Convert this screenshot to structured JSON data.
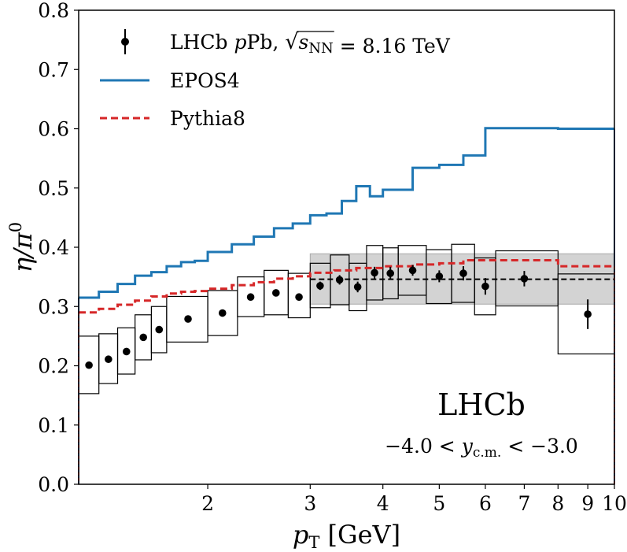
{
  "chart_data": {
    "type": "scatter",
    "xscale": "log",
    "xlim": [
      1.2,
      10
    ],
    "ylim": [
      0.0,
      0.8
    ],
    "grid": false,
    "xlabel_main": "p",
    "xlabel_sub": "T",
    "xlabel_unit": " [GeV]",
    "ylabel_main": "η/π",
    "ylabel_sup": "0",
    "x_ticks": [
      {
        "value": 2,
        "label": "2"
      },
      {
        "value": 3,
        "label": "3"
      },
      {
        "value": 4,
        "label": "4"
      },
      {
        "value": 5,
        "label": "5"
      },
      {
        "value": 6,
        "label": "6"
      },
      {
        "value": 7,
        "label": "7"
      },
      {
        "value": 8,
        "label": "8"
      },
      {
        "value": 9,
        "label": "9"
      },
      {
        "value": 10,
        "label": "10"
      }
    ],
    "y_ticks": [
      {
        "value": 0.0,
        "label": "0.0"
      },
      {
        "value": 0.1,
        "label": "0.1"
      },
      {
        "value": 0.2,
        "label": "0.2"
      },
      {
        "value": 0.3,
        "label": "0.3"
      },
      {
        "value": 0.4,
        "label": "0.4"
      },
      {
        "value": 0.5,
        "label": "0.5"
      },
      {
        "value": 0.6,
        "label": "0.6"
      },
      {
        "value": 0.7,
        "label": "0.7"
      },
      {
        "value": 0.8,
        "label": "0.8"
      }
    ],
    "legend": {
      "position": "top-left",
      "entries": [
        {
          "key": "data",
          "parts": [
            {
              "t": "LHCb "
            },
            {
              "t": "p",
              "italic": true
            },
            {
              "t": "Pb, "
            },
            {
              "t": "√",
              "root": true
            },
            {
              "t": "s",
              "italic": true,
              "overline": true
            },
            {
              "t": "NN",
              "sub": true,
              "overline": true
            },
            {
              "t": " = 8.16 TeV"
            }
          ]
        },
        {
          "key": "epos",
          "label": "EPOS4"
        },
        {
          "key": "pythia",
          "label": "Pythia8"
        }
      ]
    },
    "annotations": {
      "experiment": "LHCb",
      "rapidity": {
        "lo": "−4.0 < ",
        "var": "y",
        "sub": "c.m.",
        "hi": " < −3.0"
      }
    },
    "data_series": {
      "name": "LHCb pPb, sqrt(s_NN) = 8.16 TeV",
      "color": "#000000",
      "points": [
        {
          "xlo": 1.2,
          "xhi": 1.3,
          "x": 1.25,
          "y": 0.201,
          "stat": 0.004,
          "sys_lo": 0.153,
          "sys_hi": 0.25
        },
        {
          "xlo": 1.3,
          "xhi": 1.4,
          "x": 1.35,
          "y": 0.211,
          "stat": 0.004,
          "sys_lo": 0.17,
          "sys_hi": 0.254
        },
        {
          "xlo": 1.4,
          "xhi": 1.5,
          "x": 1.45,
          "y": 0.224,
          "stat": 0.004,
          "sys_lo": 0.186,
          "sys_hi": 0.264
        },
        {
          "xlo": 1.5,
          "xhi": 1.6,
          "x": 1.55,
          "y": 0.248,
          "stat": 0.005,
          "sys_lo": 0.21,
          "sys_hi": 0.286
        },
        {
          "xlo": 1.6,
          "xhi": 1.7,
          "x": 1.65,
          "y": 0.261,
          "stat": 0.005,
          "sys_lo": 0.222,
          "sys_hi": 0.3
        },
        {
          "xlo": 1.7,
          "xhi": 2.0,
          "x": 1.85,
          "y": 0.279,
          "stat": 0.004,
          "sys_lo": 0.24,
          "sys_hi": 0.317
        },
        {
          "xlo": 2.0,
          "xhi": 2.25,
          "x": 2.12,
          "y": 0.289,
          "stat": 0.004,
          "sys_lo": 0.251,
          "sys_hi": 0.327
        },
        {
          "xlo": 2.25,
          "xhi": 2.5,
          "x": 2.37,
          "y": 0.316,
          "stat": 0.005,
          "sys_lo": 0.283,
          "sys_hi": 0.35
        },
        {
          "xlo": 2.5,
          "xhi": 2.75,
          "x": 2.62,
          "y": 0.323,
          "stat": 0.006,
          "sys_lo": 0.286,
          "sys_hi": 0.361
        },
        {
          "xlo": 2.75,
          "xhi": 3.0,
          "x": 2.87,
          "y": 0.316,
          "stat": 0.006,
          "sys_lo": 0.281,
          "sys_hi": 0.356
        },
        {
          "xlo": 3.0,
          "xhi": 3.25,
          "x": 3.12,
          "y": 0.335,
          "stat": 0.007,
          "sys_lo": 0.298,
          "sys_hi": 0.373
        },
        {
          "xlo": 3.25,
          "xhi": 3.5,
          "x": 3.37,
          "y": 0.345,
          "stat": 0.008,
          "sys_lo": 0.303,
          "sys_hi": 0.387
        },
        {
          "xlo": 3.5,
          "xhi": 3.75,
          "x": 3.62,
          "y": 0.333,
          "stat": 0.009,
          "sys_lo": 0.293,
          "sys_hi": 0.373
        },
        {
          "xlo": 3.75,
          "xhi": 4.0,
          "x": 3.87,
          "y": 0.357,
          "stat": 0.01,
          "sys_lo": 0.311,
          "sys_hi": 0.403
        },
        {
          "xlo": 4.0,
          "xhi": 4.25,
          "x": 4.12,
          "y": 0.356,
          "stat": 0.011,
          "sys_lo": 0.313,
          "sys_hi": 0.399
        },
        {
          "xlo": 4.25,
          "xhi": 4.75,
          "x": 4.5,
          "y": 0.361,
          "stat": 0.009,
          "sys_lo": 0.319,
          "sys_hi": 0.403
        },
        {
          "xlo": 4.75,
          "xhi": 5.25,
          "x": 5.0,
          "y": 0.351,
          "stat": 0.01,
          "sys_lo": 0.305,
          "sys_hi": 0.396
        },
        {
          "xlo": 5.25,
          "xhi": 5.75,
          "x": 5.5,
          "y": 0.356,
          "stat": 0.012,
          "sys_lo": 0.307,
          "sys_hi": 0.405
        },
        {
          "xlo": 5.75,
          "xhi": 6.25,
          "x": 6.0,
          "y": 0.334,
          "stat": 0.014,
          "sys_lo": 0.286,
          "sys_hi": 0.382
        },
        {
          "xlo": 6.25,
          "xhi": 8.0,
          "x": 7.0,
          "y": 0.347,
          "stat": 0.013,
          "sys_lo": 0.301,
          "sys_hi": 0.394
        },
        {
          "xlo": 8.0,
          "xhi": 10.0,
          "x": 9.0,
          "y": 0.287,
          "stat": 0.025,
          "sys_lo": 0.22,
          "sys_hi": 0.355
        }
      ]
    },
    "fit": {
      "name": "constant fit (high p_T)",
      "xlo": 3.0,
      "xhi": 10.0,
      "value": 0.346,
      "band_lo": 0.304,
      "band_hi": 0.389,
      "line_color": "#000000",
      "band_color": "#d3d3d3"
    },
    "model_series": [
      {
        "key": "epos",
        "name": "EPOS4",
        "color": "#1f77b4",
        "style": "solid",
        "edges": [
          1.2,
          1.3,
          1.4,
          1.5,
          1.6,
          1.7,
          1.8,
          1.9,
          2.0,
          2.2,
          2.4,
          2.6,
          2.8,
          3.0,
          3.2,
          3.4,
          3.6,
          3.8,
          4.0,
          4.5,
          5.0,
          5.5,
          6.0,
          8.0,
          10.0
        ],
        "values": [
          0.315,
          0.325,
          0.338,
          0.352,
          0.358,
          0.368,
          0.375,
          0.377,
          0.392,
          0.405,
          0.418,
          0.432,
          0.44,
          0.454,
          0.457,
          0.478,
          0.503,
          0.486,
          0.497,
          0.534,
          0.539,
          0.555,
          0.601,
          0.6
        ]
      },
      {
        "key": "pythia",
        "name": "Pythia8",
        "color": "#d62728",
        "style": "dashed",
        "edges": [
          1.2,
          1.3,
          1.4,
          1.5,
          1.6,
          1.7,
          1.8,
          1.9,
          2.0,
          2.2,
          2.4,
          2.6,
          2.8,
          3.0,
          3.3,
          3.6,
          4.0,
          4.5,
          5.0,
          5.5,
          6.0,
          8.0,
          10.0
        ],
        "values": [
          0.29,
          0.296,
          0.303,
          0.31,
          0.317,
          0.322,
          0.325,
          0.326,
          0.33,
          0.336,
          0.341,
          0.347,
          0.351,
          0.357,
          0.361,
          0.365,
          0.368,
          0.371,
          0.373,
          0.378,
          0.378,
          0.368
        ]
      }
    ]
  }
}
